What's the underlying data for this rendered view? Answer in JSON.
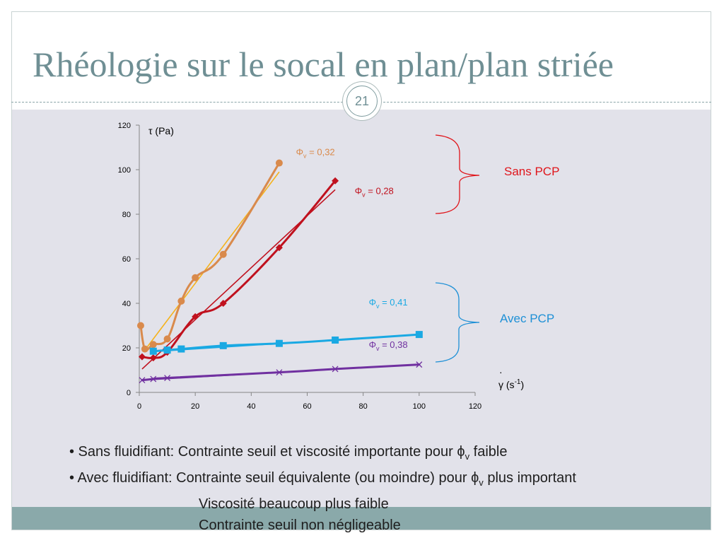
{
  "title": "Rhéologie sur le socal en plan/plan striée",
  "slide_number": "21",
  "chart_data": {
    "type": "scatter",
    "ylabel": "τ (Pa)",
    "xlabel_dot": "·",
    "xlabel": "γ (s",
    "xlabel_sup": "-1",
    "xlabel_close": ")",
    "xlim": [
      0,
      120
    ],
    "ylim": [
      0,
      120
    ],
    "x_ticks": [
      "0",
      "20",
      "40",
      "60",
      "80",
      "100",
      "120"
    ],
    "y_ticks": [
      "0",
      "20",
      "40",
      "60",
      "80",
      "100",
      "120"
    ],
    "grid": false,
    "series": [
      {
        "name": "Φv = 0,32",
        "label_main": "Φ",
        "label_sub": "v",
        "label_value": " = 0,32",
        "label_x": 56,
        "label_y": 106.5,
        "color": "#d98a4c",
        "fit_color": "#f5b21b",
        "marker": "circle",
        "x": [
          0.5,
          2,
          5,
          10,
          15,
          20,
          30,
          50
        ],
        "y": [
          30,
          19.5,
          21.5,
          24,
          41,
          51.5,
          62,
          103
        ],
        "fit": [
          [
            2,
            19
          ],
          [
            50,
            99
          ]
        ]
      },
      {
        "name": "Φv = 0,28",
        "label_main": "Φ",
        "label_sub": "v",
        "label_value": " = 0,28",
        "label_x": 77,
        "label_y": 89,
        "color": "#c0111e",
        "fit_color": "#c0111e",
        "marker": "diamond",
        "x": [
          1,
          5,
          10,
          20,
          30,
          50,
          70
        ],
        "y": [
          16,
          15.5,
          18,
          34,
          40,
          65,
          95
        ],
        "fit": [
          [
            1,
            10.5
          ],
          [
            70,
            91
          ]
        ]
      },
      {
        "name": "Φv = 0,41",
        "label_main": "Φ",
        "label_sub": "v",
        "label_value": " = 0,41",
        "label_x": 82,
        "label_y": 39,
        "color": "#1aa9e3",
        "fit_color": "#1aa9e3",
        "marker": "square",
        "x": [
          5,
          10,
          15,
          30,
          50,
          70,
          100
        ],
        "y": [
          18.5,
          19,
          19.5,
          21,
          22,
          23.5,
          26
        ],
        "fit": [
          [
            5,
            18.3
          ],
          [
            100,
            26
          ]
        ]
      },
      {
        "name": "Φv = 0,38",
        "label_main": "Φ",
        "label_sub": "v",
        "label_value": " = 0,38",
        "label_x": 82,
        "label_y": 20,
        "color": "#7030a0",
        "fit_color": "#7030a0",
        "marker": "x",
        "x": [
          1,
          5,
          10,
          50,
          70,
          100
        ],
        "y": [
          5.5,
          6,
          6.5,
          9,
          10.5,
          12.5
        ],
        "fit": [
          [
            1,
            5.5
          ],
          [
            100,
            12.5
          ]
        ]
      }
    ],
    "annotations": {
      "sans_pcp": {
        "text": "Sans PCP",
        "color": "#e0151b"
      },
      "avec_pcp": {
        "text": "Avec PCP",
        "color": "#1e90d6"
      }
    }
  },
  "bullets": [
    {
      "prefix": "• Sans fluidifiant: Contrainte seuil et viscosité importante pour ϕ",
      "sub": "v",
      "suffix": " faible"
    },
    {
      "prefix": "• Avec fluidifiant: Contrainte seuil équivalente (ou moindre) pour ϕ",
      "sub": "v",
      "suffix": " plus important"
    },
    {
      "text": "Viscosité beaucoup plus faible"
    },
    {
      "text": "Contrainte seuil non négligeable"
    }
  ]
}
